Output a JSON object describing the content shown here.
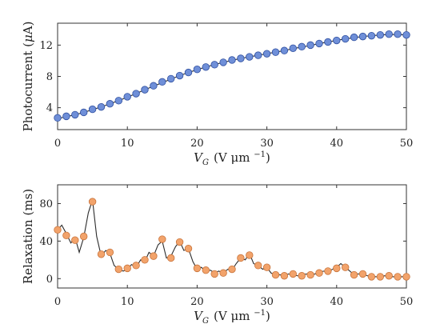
{
  "chart_data": [
    {
      "type": "scatter",
      "xlabel": "V_G (V μm⁻¹)",
      "xlabel_parts": {
        "base": "V",
        "sub": "G",
        "rest": "(V μm",
        "sup": "−1",
        "end": ")"
      },
      "ylabel_parts": {
        "pre": "Photocurrent (",
        "greek": "μ",
        "post": "A)"
      },
      "xlim": [
        0,
        50
      ],
      "ylim": [
        1.2,
        14.8
      ],
      "xticks": [
        0,
        10,
        20,
        30,
        40,
        50
      ],
      "yticks": [
        4,
        8,
        12
      ],
      "grid": false,
      "legend": "none",
      "marker_color": "#6f8fd8",
      "marker_edge": "#2f4f9f",
      "line_color": "#2b2b2b",
      "x": [
        0,
        1.25,
        2.5,
        3.75,
        5,
        6.25,
        7.5,
        8.75,
        10,
        11.25,
        12.5,
        13.75,
        15,
        16.25,
        17.5,
        18.75,
        20,
        21.25,
        22.5,
        23.75,
        25,
        26.25,
        27.5,
        28.75,
        30,
        31.25,
        32.5,
        33.75,
        35,
        36.25,
        37.5,
        38.75,
        40,
        41.25,
        42.5,
        43.75,
        45,
        46.25,
        47.5,
        48.75,
        50
      ],
      "y": [
        2.7,
        2.9,
        3.1,
        3.4,
        3.8,
        4.1,
        4.5,
        4.9,
        5.4,
        5.8,
        6.3,
        6.8,
        7.3,
        7.7,
        8.1,
        8.5,
        8.9,
        9.2,
        9.5,
        9.8,
        10.1,
        10.3,
        10.5,
        10.7,
        10.9,
        11.1,
        11.3,
        11.6,
        11.8,
        12.0,
        12.2,
        12.4,
        12.6,
        12.8,
        13.0,
        13.1,
        13.2,
        13.3,
        13.4,
        13.4,
        13.3
      ],
      "fit_y": [
        2.6,
        2.85,
        3.1,
        3.4,
        3.75,
        4.1,
        4.5,
        4.9,
        5.35,
        5.8,
        6.3,
        6.75,
        7.2,
        7.65,
        8.1,
        8.5,
        8.85,
        9.2,
        9.5,
        9.8,
        10.05,
        10.3,
        10.5,
        10.7,
        10.9,
        11.1,
        11.3,
        11.55,
        11.75,
        11.95,
        12.2,
        12.4,
        12.6,
        12.8,
        12.95,
        13.1,
        13.2,
        13.3,
        13.35,
        13.35,
        13.3
      ]
    },
    {
      "type": "scatter",
      "xlabel": "V_G (V μm⁻¹)",
      "xlabel_parts": {
        "base": "V",
        "sub": "G",
        "rest": "(V μm",
        "sup": "−1",
        "end": ")"
      },
      "ylabel_parts": {
        "pre": "Relaxation (ms)",
        "greek": "",
        "post": ""
      },
      "xlim": [
        0,
        50
      ],
      "ylim": [
        -10,
        100
      ],
      "xticks": [
        0,
        10,
        20,
        30,
        40,
        50
      ],
      "yticks": [
        0,
        40,
        80
      ],
      "grid": false,
      "legend": "none",
      "marker_color": "#f2a36b",
      "marker_edge": "#c8743c",
      "line_color": "#2b2b2b",
      "x": [
        0,
        1.25,
        2.5,
        3.75,
        5,
        6.25,
        7.5,
        8.75,
        10,
        11.25,
        12.5,
        13.75,
        15,
        16.25,
        17.5,
        18.75,
        20,
        21.25,
        22.5,
        23.75,
        25,
        26.25,
        27.5,
        28.75,
        30,
        31.25,
        32.5,
        33.75,
        35,
        36.25,
        37.5,
        38.75,
        40,
        41.25,
        42.5,
        43.75,
        45,
        46.25,
        47.5,
        48.75,
        50
      ],
      "y": [
        52,
        46,
        41,
        45,
        82,
        26,
        28,
        10,
        11,
        14,
        20,
        24,
        42,
        22,
        39,
        32,
        11,
        9,
        5,
        6,
        10,
        22,
        25,
        14,
        12,
        4,
        3,
        5,
        3,
        4,
        6,
        8,
        11,
        12,
        4,
        5,
        2,
        2,
        3,
        2,
        2
      ],
      "fit_x": [
        0,
        0.6,
        1.25,
        1.9,
        2.5,
        3.1,
        3.75,
        4.4,
        5,
        5.6,
        6.25,
        6.9,
        7.5,
        8.1,
        8.75,
        9.4,
        10,
        10.6,
        11.25,
        11.9,
        12.5,
        13.1,
        13.75,
        14.4,
        15,
        15.6,
        16.25,
        16.9,
        17.5,
        18.1,
        18.75,
        19.4,
        20,
        20.6,
        21.25,
        21.9,
        22.5,
        23.1,
        23.75,
        24.4,
        25,
        25.6,
        26.25,
        26.9,
        27.5,
        28.1,
        28.75,
        29.4,
        30,
        30.6,
        31.25,
        31.9,
        32.5,
        33.1,
        33.75,
        34.4,
        35,
        35.6,
        36.25,
        36.9,
        37.5,
        38.1,
        38.75,
        39.4,
        40,
        40.6,
        41.25,
        41.9,
        42.5,
        43.1,
        43.75,
        44.4,
        45,
        45.6,
        46.25,
        46.9,
        47.5,
        48.1,
        48.75,
        49.4,
        50
      ],
      "fit_y": [
        52,
        57,
        48,
        38,
        44,
        28,
        44,
        70,
        84,
        45,
        24,
        30,
        27,
        14,
        10,
        8,
        10,
        15,
        12,
        20,
        18,
        28,
        24,
        36,
        40,
        22,
        24,
        34,
        40,
        30,
        32,
        18,
        10,
        12,
        8,
        9,
        6,
        8,
        6,
        10,
        9,
        16,
        22,
        20,
        27,
        16,
        14,
        10,
        12,
        6,
        4,
        4,
        3,
        5,
        4,
        3,
        3,
        5,
        4,
        5,
        6,
        8,
        7,
        10,
        12,
        16,
        12,
        8,
        4,
        5,
        5,
        3,
        3,
        2,
        2,
        3,
        2,
        2,
        2,
        2,
        2
      ]
    }
  ]
}
